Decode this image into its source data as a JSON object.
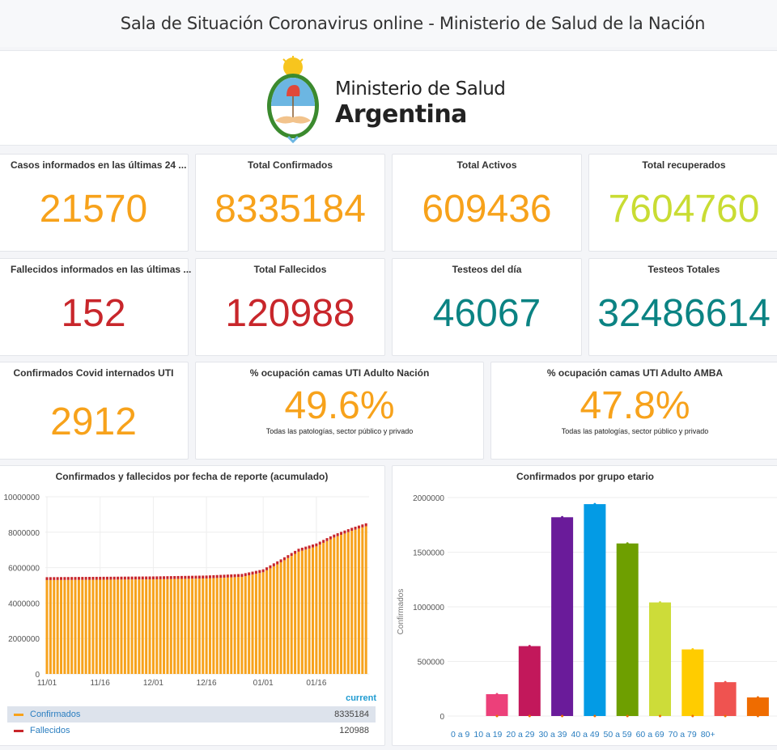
{
  "header": {
    "title": "Sala de Situación Coronavirus online - Ministerio de Salud de la Nación"
  },
  "logo": {
    "line1": "Ministerio de Salud",
    "line2": "Argentina"
  },
  "colors": {
    "orange": "#f7a21b",
    "red": "#c8262b",
    "teal": "#0b8383",
    "lime": "#c9dc33"
  },
  "stats": [
    {
      "title": "Casos informados en las últimas 24 ...",
      "value": "21570"
    },
    {
      "title": "Total Confirmados",
      "value": "8335184"
    },
    {
      "title": "Total Activos",
      "value": "609436"
    },
    {
      "title": "Total recuperados",
      "value": "7604760"
    },
    {
      "title": "Fallecidos informados en las últimas ...",
      "value": "152"
    },
    {
      "title": "Total Fallecidos",
      "value": "120988"
    },
    {
      "title": "Testeos del día",
      "value": "46067"
    },
    {
      "title": "Testeos Totales",
      "value": "32486614"
    },
    {
      "title": "Confirmados Covid internados UTI",
      "value": "2912"
    },
    {
      "title": "% ocupación camas UTI Adulto Nación",
      "value": "49.6%",
      "sub": "Todas las patologías, sector público y privado"
    },
    {
      "title": "% ocupación camas UTI Adulto AMBA",
      "value": "47.8%",
      "sub": "Todas las patologías, sector público y privado"
    }
  ],
  "chart_data": [
    {
      "type": "bar",
      "title": "Confirmados y fallecidos por fecha de reporte (acumulado)",
      "ylim": [
        0,
        10000000
      ],
      "yticks": [
        "0",
        "2000000",
        "4000000",
        "6000000",
        "8000000",
        "10000000"
      ],
      "xticks": [
        {
          "day": 0,
          "label": "11/01"
        },
        {
          "day": 15,
          "label": "11/16"
        },
        {
          "day": 30,
          "label": "12/01"
        },
        {
          "day": 45,
          "label": "12/16"
        },
        {
          "day": 61,
          "label": "01/01"
        },
        {
          "day": 76,
          "label": "01/16"
        }
      ],
      "days": 91,
      "series": [
        {
          "name": "Confirmados",
          "color": "#f7a21b",
          "current": "8335184",
          "keypoints": [
            [
              0,
              5300000
            ],
            [
              30,
              5340000
            ],
            [
              45,
              5390000
            ],
            [
              55,
              5480000
            ],
            [
              61,
              5740000
            ],
            [
              66,
              6300000
            ],
            [
              71,
              6900000
            ],
            [
              76,
              7200000
            ],
            [
              81,
              7700000
            ],
            [
              86,
              8080000
            ],
            [
              90,
              8335184
            ]
          ]
        },
        {
          "name": "Fallecidos",
          "color": "#c8262b",
          "current": "120988",
          "keypoints": [
            [
              0,
              116000
            ],
            [
              90,
              120988
            ]
          ]
        }
      ],
      "legend_header": "current",
      "stacked": true
    },
    {
      "type": "bar",
      "title": "Confirmados por grupo etario",
      "ylabel": "Confirmados",
      "ylim": [
        0,
        2000000
      ],
      "yticks": [
        "0",
        "500000",
        "1000000",
        "1500000",
        "2000000"
      ],
      "categories": [
        "0 a 9",
        "10 a 19",
        "20 a 29",
        "30 a 39",
        "40 a 49",
        "50 a 59",
        "60 a 69",
        "70 a 79",
        "80+"
      ],
      "values": [
        200000,
        640000,
        1820000,
        1940000,
        1580000,
        1040000,
        610000,
        310000,
        170000
      ],
      "bar_colors": [
        "#ec407a",
        "#c2185b",
        "#6a1b9a",
        "#039be5",
        "#6e9f00",
        "#cddc39",
        "#ffcc00",
        "#ef5350",
        "#ef6c00"
      ]
    }
  ]
}
